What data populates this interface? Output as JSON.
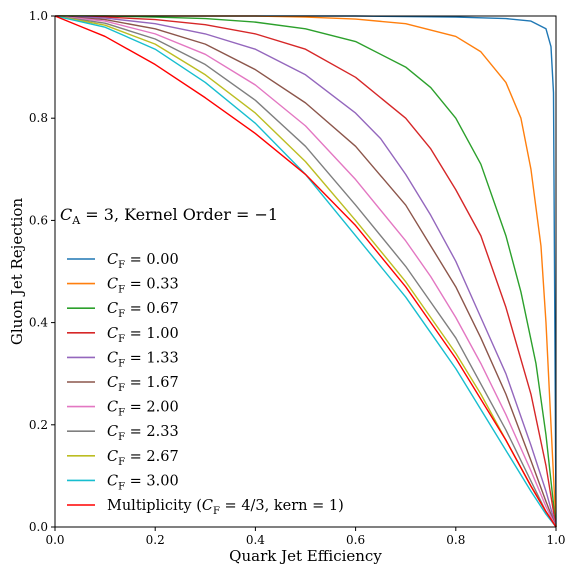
{
  "chart_data": {
    "type": "line",
    "xlabel": "Quark Jet Efficiency",
    "ylabel": "Gluon Jet Rejection",
    "xlim": [
      0,
      1
    ],
    "ylim": [
      0,
      1
    ],
    "xticks": [
      "0.0",
      "0.2",
      "0.4",
      "0.6",
      "0.8",
      "1.0"
    ],
    "yticks": [
      "0.0",
      "0.2",
      "0.4",
      "0.6",
      "0.8",
      "1.0"
    ],
    "annotation": {
      "prefix": "C",
      "sub": "A",
      "rest": " = 3, Kernel Order = −1"
    },
    "legend_position": "center-left",
    "series": [
      {
        "legend": {
          "math": "C",
          "sub": "F",
          "rest": " = 0.00"
        },
        "color": "#1f77b4",
        "x": [
          0,
          0.1,
          0.2,
          0.3,
          0.4,
          0.5,
          0.6,
          0.7,
          0.8,
          0.9,
          0.95,
          0.98,
          0.99,
          0.995,
          1.0
        ],
        "y": [
          1.0,
          1.0,
          1.0,
          1.0,
          1.0,
          1.0,
          1.0,
          0.999,
          0.998,
          0.995,
          0.99,
          0.975,
          0.94,
          0.85,
          0.0
        ]
      },
      {
        "legend": {
          "math": "C",
          "sub": "F",
          "rest": " = 0.33"
        },
        "color": "#ff7f0e",
        "x": [
          0,
          0.1,
          0.2,
          0.3,
          0.4,
          0.5,
          0.6,
          0.7,
          0.8,
          0.85,
          0.9,
          0.93,
          0.95,
          0.97,
          0.98,
          0.99,
          1.0
        ],
        "y": [
          1.0,
          1.0,
          1.0,
          1.0,
          1.0,
          0.998,
          0.994,
          0.985,
          0.96,
          0.93,
          0.87,
          0.8,
          0.7,
          0.55,
          0.4,
          0.2,
          0.0
        ]
      },
      {
        "legend": {
          "math": "C",
          "sub": "F",
          "rest": " = 0.67"
        },
        "color": "#2ca02c",
        "x": [
          0,
          0.1,
          0.2,
          0.3,
          0.4,
          0.5,
          0.6,
          0.7,
          0.75,
          0.8,
          0.85,
          0.9,
          0.93,
          0.96,
          0.98,
          1.0
        ],
        "y": [
          1.0,
          1.0,
          0.998,
          0.995,
          0.988,
          0.975,
          0.95,
          0.9,
          0.86,
          0.8,
          0.71,
          0.57,
          0.46,
          0.32,
          0.18,
          0.0
        ]
      },
      {
        "legend": {
          "math": "C",
          "sub": "F",
          "rest": " = 1.00"
        },
        "color": "#d62728",
        "x": [
          0,
          0.1,
          0.2,
          0.3,
          0.4,
          0.5,
          0.6,
          0.7,
          0.75,
          0.8,
          0.85,
          0.9,
          0.95,
          0.98,
          1.0
        ],
        "y": [
          1.0,
          0.998,
          0.993,
          0.983,
          0.965,
          0.935,
          0.88,
          0.8,
          0.74,
          0.66,
          0.57,
          0.43,
          0.26,
          0.12,
          0.0
        ]
      },
      {
        "legend": {
          "math": "C",
          "sub": "F",
          "rest": " = 1.33"
        },
        "color": "#9467bd",
        "x": [
          0,
          0.1,
          0.2,
          0.3,
          0.4,
          0.5,
          0.6,
          0.65,
          0.7,
          0.75,
          0.8,
          0.85,
          0.9,
          0.95,
          0.98,
          1.0
        ],
        "y": [
          1.0,
          0.996,
          0.985,
          0.965,
          0.935,
          0.885,
          0.81,
          0.76,
          0.69,
          0.61,
          0.52,
          0.41,
          0.3,
          0.16,
          0.07,
          0.0
        ]
      },
      {
        "legend": {
          "math": "C",
          "sub": "F",
          "rest": " = 1.67"
        },
        "color": "#8c564b",
        "x": [
          0,
          0.1,
          0.2,
          0.3,
          0.4,
          0.5,
          0.6,
          0.7,
          0.75,
          0.8,
          0.85,
          0.9,
          0.95,
          0.98,
          1.0
        ],
        "y": [
          1.0,
          0.993,
          0.975,
          0.945,
          0.895,
          0.83,
          0.745,
          0.63,
          0.55,
          0.47,
          0.37,
          0.26,
          0.13,
          0.05,
          0.0
        ]
      },
      {
        "legend": {
          "math": "C",
          "sub": "F",
          "rest": " = 2.00"
        },
        "color": "#e377c2",
        "x": [
          0,
          0.1,
          0.2,
          0.3,
          0.4,
          0.5,
          0.6,
          0.7,
          0.75,
          0.8,
          0.85,
          0.9,
          0.95,
          0.98,
          1.0
        ],
        "y": [
          1.0,
          0.99,
          0.965,
          0.925,
          0.865,
          0.785,
          0.68,
          0.56,
          0.49,
          0.41,
          0.32,
          0.22,
          0.11,
          0.04,
          0.0
        ]
      },
      {
        "legend": {
          "math": "C",
          "sub": "F",
          "rest": " = 2.33"
        },
        "color": "#7f7f7f",
        "x": [
          0,
          0.1,
          0.2,
          0.3,
          0.4,
          0.5,
          0.6,
          0.7,
          0.75,
          0.8,
          0.85,
          0.9,
          0.95,
          0.98,
          1.0
        ],
        "y": [
          1.0,
          0.986,
          0.955,
          0.905,
          0.835,
          0.745,
          0.63,
          0.51,
          0.44,
          0.37,
          0.28,
          0.19,
          0.09,
          0.03,
          0.0
        ]
      },
      {
        "legend": {
          "math": "C",
          "sub": "F",
          "rest": " = 2.67"
        },
        "color": "#bcbd22",
        "x": [
          0,
          0.1,
          0.2,
          0.3,
          0.4,
          0.5,
          0.6,
          0.7,
          0.75,
          0.8,
          0.85,
          0.9,
          0.95,
          0.98,
          1.0
        ],
        "y": [
          1.0,
          0.982,
          0.945,
          0.885,
          0.81,
          0.715,
          0.6,
          0.48,
          0.41,
          0.34,
          0.26,
          0.17,
          0.08,
          0.03,
          0.0
        ]
      },
      {
        "legend": {
          "math": "C",
          "sub": "F",
          "rest": " = 3.00"
        },
        "color": "#17becf",
        "x": [
          0,
          0.1,
          0.2,
          0.3,
          0.4,
          0.5,
          0.6,
          0.7,
          0.75,
          0.8,
          0.85,
          0.9,
          0.95,
          0.98,
          1.0
        ],
        "y": [
          1.0,
          0.978,
          0.935,
          0.87,
          0.79,
          0.69,
          0.57,
          0.45,
          0.38,
          0.31,
          0.23,
          0.15,
          0.07,
          0.025,
          0.0
        ]
      },
      {
        "legend": {
          "text": "Multiplicity (",
          "math": "C",
          "sub": "F",
          "rest": " = 4/3, kern = 1)"
        },
        "color": "#ff0000",
        "x": [
          0,
          0.05,
          0.1,
          0.2,
          0.3,
          0.4,
          0.5,
          0.6,
          0.65,
          0.7,
          0.75,
          0.8,
          0.85,
          0.9,
          0.95,
          0.98,
          1.0
        ],
        "y": [
          1.0,
          0.98,
          0.96,
          0.905,
          0.84,
          0.77,
          0.69,
          0.59,
          0.53,
          0.47,
          0.4,
          0.33,
          0.25,
          0.17,
          0.08,
          0.03,
          0.0
        ]
      }
    ]
  }
}
